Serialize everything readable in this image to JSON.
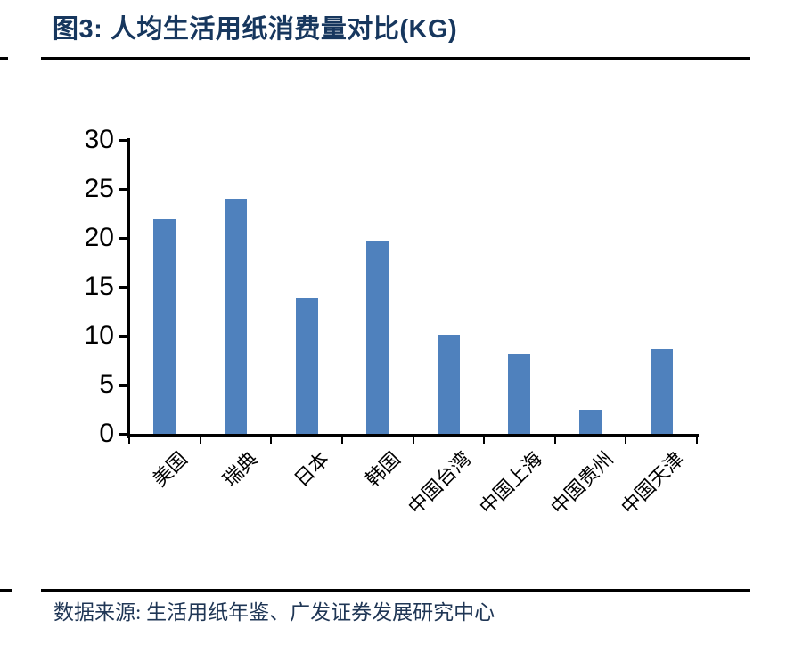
{
  "header": {
    "title": "图3:  人均生活用纸消费量对比(KG)"
  },
  "footer": {
    "source": "数据来源:  生活用纸年鉴、广发证券发展研究中心"
  },
  "colors": {
    "title": "#17375E",
    "source": "#1F3655",
    "bar": "#4F81BD",
    "axis": "#000000"
  },
  "chart_data": {
    "type": "bar",
    "title": "人均生活用纸消费量对比(KG)",
    "categories": [
      "美国",
      "瑞典",
      "日本",
      "韩国",
      "中国台湾",
      "中国上海",
      "中国贵州",
      "中国天津"
    ],
    "values": [
      21.9,
      24.0,
      13.8,
      19.7,
      10.1,
      8.2,
      2.5,
      8.6
    ],
    "xlabel": "",
    "ylabel": "",
    "ylim": [
      0,
      30
    ],
    "yticks": [
      0,
      5,
      10,
      15,
      20,
      25,
      30
    ],
    "grid": false,
    "legend_position": "none",
    "bar_color": "#4F81BD"
  }
}
